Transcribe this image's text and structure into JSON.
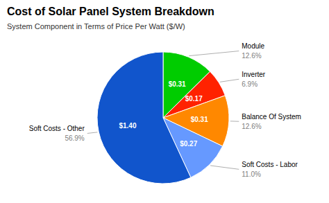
{
  "chart_data": {
    "type": "pie",
    "title": "Cost of Solar Panel System Breakdown",
    "subtitle": "System Component in Terms of Price Per Watt ($/W)",
    "categories": [
      "Module",
      "Inverter",
      "Balance Of System",
      "Soft Costs - Labor",
      "Soft Costs - Other"
    ],
    "values": [
      12.6,
      6.9,
      12.6,
      11.0,
      56.9
    ],
    "value_labels": [
      "12.6%",
      "6.9%",
      "12.6%",
      "11.0%",
      "56.9%"
    ],
    "price_labels": [
      "$0.31",
      "$0.17",
      "$0.31",
      "$0.27",
      "$1.40"
    ],
    "colors": [
      "#00cc00",
      "#ff2200",
      "#ff8800",
      "#6699ff",
      "#1155cc"
    ],
    "data_labels": true
  }
}
